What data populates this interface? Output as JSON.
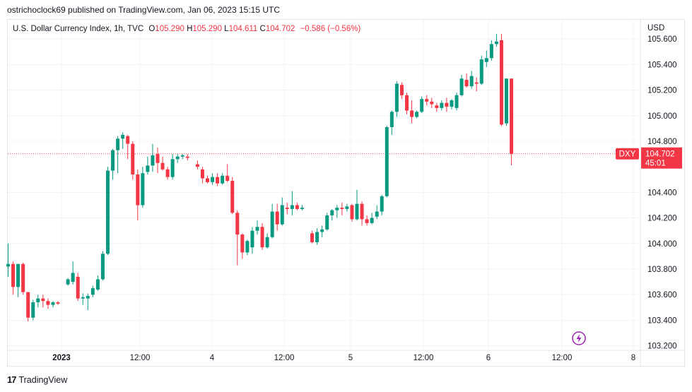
{
  "header": {
    "published_text": "ostrichoclock69 published on TradingView.com, Jan 06, 2023 15:15 UTC"
  },
  "legend": {
    "symbol": "U.S. Dollar Currency Index, 1h, TVC",
    "open_label": "O",
    "open_value": "105.290",
    "high_label": "H",
    "high_value": "105.290",
    "low_label": "L",
    "low_value": "104.611",
    "close_label": "C",
    "close_value": "104.702",
    "change": "−0.586 (−0.56%)"
  },
  "axis": {
    "currency": "USD"
  },
  "footer": {
    "brand": "TradingView",
    "logo_glyph": "17"
  },
  "icons": {
    "lightning": "lightning-icon",
    "logo": "tradingview-logo-icon"
  },
  "colors": {
    "up": "#089981",
    "down": "#f23645",
    "price_line": "#f23645",
    "grid": "#f0f3fa"
  },
  "chart_data": {
    "type": "candlestick",
    "y_ticks": [
      "105.600",
      "105.400",
      "105.200",
      "105.000",
      "104.800",
      "104.400",
      "104.200",
      "104.000",
      "103.800",
      "103.600",
      "103.400",
      "103.200"
    ],
    "y_range": [
      103.17,
      105.75
    ],
    "x_ticks": [
      "2023",
      "12:00",
      "4",
      "12:00",
      "5",
      "12:00",
      "6",
      "12:00",
      "8"
    ],
    "current_price": {
      "symbol": "DXY",
      "price": "104.702",
      "countdown": "45:01"
    },
    "candles": [
      [
        103.82,
        104.0,
        103.74,
        103.84
      ],
      [
        103.84,
        103.86,
        103.6,
        103.66
      ],
      [
        103.66,
        103.84,
        103.58,
        103.84
      ],
      [
        103.84,
        103.85,
        103.6,
        103.62
      ],
      [
        103.62,
        103.62,
        103.39,
        103.42
      ],
      [
        103.42,
        103.56,
        103.4,
        103.54
      ],
      [
        103.54,
        103.6,
        103.5,
        103.57
      ],
      [
        103.57,
        103.6,
        103.5,
        103.55
      ],
      [
        103.55,
        103.57,
        103.49,
        103.52
      ],
      [
        103.52,
        103.55,
        103.5,
        103.54
      ],
      [
        103.54,
        103.55,
        103.52,
        103.53
      ],
      null,
      [
        103.68,
        103.73,
        103.67,
        103.72
      ],
      [
        103.7,
        103.86,
        103.68,
        103.77
      ],
      [
        103.74,
        103.77,
        103.55,
        103.57
      ],
      [
        103.57,
        103.61,
        103.52,
        103.58
      ],
      [
        103.57,
        103.61,
        103.48,
        103.59
      ],
      [
        103.6,
        103.67,
        103.58,
        103.65
      ],
      [
        103.64,
        103.75,
        103.63,
        103.72
      ],
      [
        103.72,
        103.94,
        103.71,
        103.92
      ],
      [
        103.92,
        104.6,
        103.91,
        104.57
      ],
      [
        104.57,
        104.74,
        104.5,
        104.73
      ],
      [
        104.73,
        104.84,
        104.55,
        104.82
      ],
      [
        104.82,
        104.87,
        104.74,
        104.85
      ],
      [
        104.84,
        104.85,
        104.66,
        104.78
      ],
      [
        104.78,
        104.8,
        104.5,
        104.54
      ],
      [
        104.54,
        104.58,
        104.18,
        104.3
      ],
      [
        104.3,
        104.6,
        104.28,
        104.55
      ],
      [
        104.56,
        104.68,
        104.54,
        104.61
      ],
      [
        104.61,
        104.78,
        104.56,
        104.69
      ],
      [
        104.7,
        104.75,
        104.55,
        104.63
      ],
      [
        104.63,
        104.68,
        104.57,
        104.58
      ],
      [
        104.58,
        104.6,
        104.5,
        104.52
      ],
      [
        104.52,
        104.7,
        104.5,
        104.66
      ],
      [
        104.66,
        104.7,
        104.63,
        104.68
      ],
      [
        104.68,
        104.7,
        104.66,
        104.69
      ],
      [
        104.68,
        104.7,
        104.65,
        104.67
      ],
      null,
      [
        104.62,
        104.65,
        104.58,
        104.6
      ],
      [
        104.58,
        104.6,
        104.47,
        104.51
      ],
      [
        104.51,
        104.53,
        104.47,
        104.48
      ],
      [
        104.48,
        104.55,
        104.46,
        104.52
      ],
      [
        104.52,
        104.55,
        104.45,
        104.47
      ],
      [
        104.47,
        104.55,
        104.46,
        104.53
      ],
      [
        104.53,
        104.62,
        104.48,
        104.49
      ],
      [
        104.49,
        104.52,
        104.23,
        104.24
      ],
      [
        104.24,
        104.26,
        103.83,
        104.07
      ],
      [
        104.07,
        104.08,
        103.88,
        103.93
      ],
      [
        103.93,
        104.03,
        103.91,
        104.02
      ],
      [
        103.97,
        104.13,
        103.92,
        104.1
      ],
      [
        104.1,
        104.18,
        104.07,
        104.13
      ],
      [
        104.13,
        104.16,
        103.95,
        103.97
      ],
      [
        103.97,
        104.08,
        103.96,
        104.05
      ],
      [
        104.05,
        104.31,
        104.04,
        104.25
      ],
      [
        104.25,
        104.31,
        104.1,
        104.15
      ],
      [
        104.15,
        104.36,
        104.14,
        104.3
      ],
      [
        104.28,
        104.32,
        104.23,
        104.27
      ],
      [
        104.27,
        104.41,
        104.22,
        104.3
      ],
      [
        104.3,
        104.32,
        104.26,
        104.27
      ],
      [
        104.27,
        104.3,
        104.26,
        104.28
      ],
      null,
      [
        104.08,
        104.1,
        104.0,
        104.01
      ],
      [
        104.01,
        104.12,
        103.99,
        104.09
      ],
      [
        104.09,
        104.14,
        104.05,
        104.11
      ],
      [
        104.11,
        104.24,
        104.1,
        104.22
      ],
      [
        104.22,
        104.27,
        104.18,
        104.26
      ],
      [
        104.26,
        104.3,
        104.2,
        104.28
      ],
      [
        104.28,
        104.32,
        104.22,
        104.27
      ],
      [
        104.27,
        104.31,
        104.25,
        104.29
      ],
      [
        104.3,
        104.31,
        104.17,
        104.19
      ],
      [
        104.19,
        104.42,
        104.18,
        104.31
      ],
      [
        104.31,
        104.33,
        104.14,
        104.19
      ],
      [
        104.19,
        104.22,
        104.14,
        104.16
      ],
      [
        104.16,
        104.24,
        104.15,
        104.2
      ],
      [
        104.21,
        104.3,
        104.19,
        104.25
      ],
      [
        104.25,
        104.38,
        104.22,
        104.37
      ],
      [
        104.37,
        104.92,
        104.36,
        104.91
      ],
      [
        104.91,
        105.04,
        104.85,
        105.03
      ],
      [
        105.03,
        105.27,
        104.99,
        105.25
      ],
      [
        105.24,
        105.26,
        105.13,
        105.16
      ],
      [
        105.16,
        105.18,
        105.01,
        105.04
      ],
      [
        105.04,
        105.12,
        104.94,
        104.99
      ],
      [
        104.99,
        105.04,
        104.98,
        105.03
      ],
      [
        105.03,
        105.15,
        105.02,
        105.13
      ],
      [
        105.13,
        105.16,
        105.08,
        105.11
      ],
      [
        105.11,
        105.14,
        105.06,
        105.09
      ],
      [
        105.08,
        105.1,
        105.03,
        105.06
      ],
      [
        105.06,
        105.12,
        105.04,
        105.1
      ],
      [
        105.1,
        105.14,
        105.03,
        105.07
      ],
      [
        105.07,
        105.13,
        105.05,
        105.12
      ],
      [
        105.06,
        105.18,
        105.04,
        105.16
      ],
      [
        105.16,
        105.32,
        105.15,
        105.29
      ],
      [
        105.28,
        105.33,
        105.22,
        105.23
      ],
      [
        105.23,
        105.35,
        105.21,
        105.31
      ],
      [
        105.26,
        105.3,
        105.19,
        105.25
      ],
      [
        105.25,
        105.47,
        105.24,
        105.44
      ],
      [
        105.42,
        105.51,
        105.38,
        105.45
      ],
      [
        105.45,
        105.59,
        105.43,
        105.56
      ],
      [
        105.56,
        105.64,
        105.54,
        105.58
      ],
      [
        105.59,
        105.64,
        104.92,
        104.93
      ],
      [
        104.94,
        105.29,
        104.92,
        105.29
      ],
      [
        105.29,
        105.29,
        104.611,
        104.702
      ]
    ]
  }
}
